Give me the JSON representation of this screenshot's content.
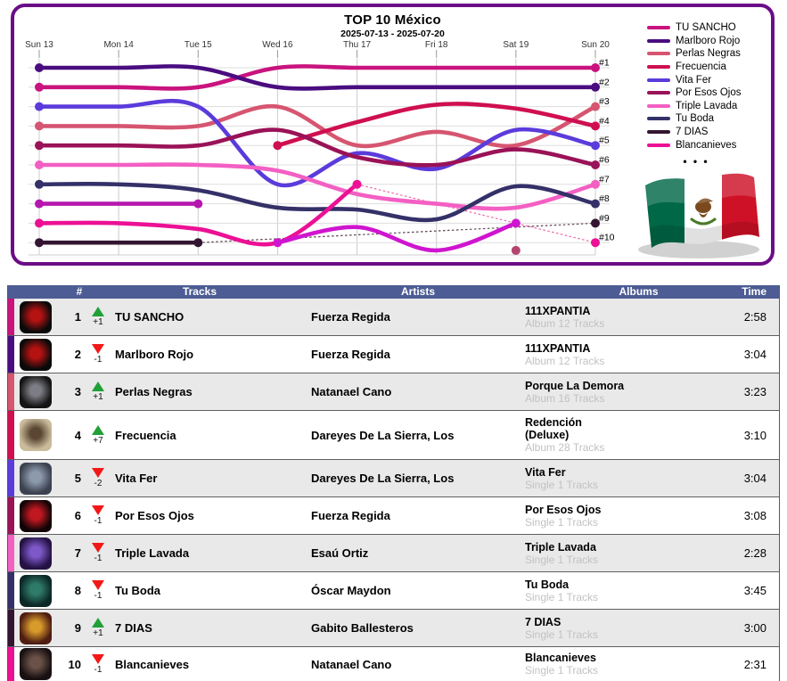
{
  "chart_data": {
    "type": "line",
    "variant": "bump-rank-chart",
    "title": "TOP 10 México",
    "subtitle": "2025-07-13 - 2025-07-20",
    "x": [
      "Sun 13",
      "Mon 14",
      "Tue 15",
      "Wed 16",
      "Thu 17",
      "Fri 18",
      "Sat 19",
      "Sun 20"
    ],
    "rank_labels": [
      "#1",
      "#2",
      "#3",
      "#4",
      "#5",
      "#6",
      "#7",
      "#8",
      "#9",
      "#10"
    ],
    "y_axis": "rank, 1 at top to 10 at bottom",
    "grid": true,
    "legend_position": "top-right",
    "legend_more_symbol": "•  •  •",
    "series": [
      {
        "name": "TU SANCHO",
        "color": "#c9137e",
        "in_legend": true,
        "ranks": [
          2,
          2,
          2,
          1,
          1,
          1,
          1,
          1
        ]
      },
      {
        "name": "Marlboro Rojo",
        "color": "#4a0d80",
        "in_legend": true,
        "ranks": [
          1,
          1,
          1,
          2,
          2,
          2,
          2,
          2
        ]
      },
      {
        "name": "Perlas Negras",
        "color": "#d65570",
        "in_legend": true,
        "ranks": [
          4,
          4,
          4,
          3,
          5,
          4.3,
          5,
          3
        ]
      },
      {
        "name": "Frecuencia",
        "color": "#cf0f50",
        "in_legend": true,
        "ranks": [
          null,
          null,
          null,
          5,
          3.8,
          2.9,
          3.1,
          4
        ]
      },
      {
        "name": "Vita Fer",
        "color": "#5b3bdb",
        "in_legend": true,
        "ranks": [
          3,
          3,
          3,
          7,
          5.4,
          6.2,
          4.2,
          5
        ]
      },
      {
        "name": "Por Esos Ojos",
        "color": "#9a1257",
        "in_legend": true,
        "ranks": [
          5,
          5,
          5,
          4.2,
          5.6,
          6,
          5.2,
          6
        ]
      },
      {
        "name": "Triple Lavada",
        "color": "#f35fc3",
        "in_legend": true,
        "ranks": [
          6,
          6,
          6,
          6.3,
          7.5,
          8,
          8.2,
          7
        ]
      },
      {
        "name": "Tu Boda",
        "color": "#343068",
        "in_legend": true,
        "ranks": [
          7,
          7,
          7.3,
          8.2,
          8.3,
          8.8,
          7.1,
          8
        ]
      },
      {
        "name": "7 DIAS",
        "color": "#331431",
        "in_legend": true,
        "ranks": [
          10,
          10,
          10,
          null,
          null,
          null,
          null,
          9
        ]
      },
      {
        "name": "Blancanieves",
        "color": "#ec1095",
        "in_legend": true,
        "ranks": [
          9,
          9,
          9.3,
          10,
          7,
          null,
          null,
          10
        ]
      },
      {
        "name": "unlabeled-exit",
        "color": "#b517ae",
        "in_legend": false,
        "ranks": [
          8,
          8,
          8,
          null,
          null,
          null,
          null,
          null
        ]
      },
      {
        "name": "unlabeled-run",
        "color": "#cf15cf",
        "in_legend": false,
        "ranks": [
          null,
          null,
          null,
          10,
          9.2,
          10.4,
          9,
          null
        ]
      },
      {
        "name": "unlabeled-dot",
        "color": "#b5446e",
        "in_legend": false,
        "ranks": [
          null,
          null,
          null,
          null,
          null,
          null,
          10.4,
          null
        ]
      }
    ],
    "dotted_links": [
      {
        "from_day": 2,
        "from_rank": 10,
        "to_day": 7,
        "to_rank": 9,
        "color": "#5a4152"
      },
      {
        "from_day": 4,
        "from_rank": 7,
        "to_day": 7,
        "to_rank": 10,
        "color": "#ef64a8"
      }
    ]
  },
  "panel": {
    "border_color": "#6b0d86"
  },
  "flag": {
    "green": "#006847",
    "white": "#ffffff",
    "red": "#ce1126",
    "eagle": "#7a4a1e",
    "laurel": "#4a7a2a",
    "shadow": "#9a9a9a"
  },
  "table": {
    "header_bg": "#4d5c94",
    "up_color": "#21a038",
    "down_color": "#f21818",
    "headers": {
      "rank": "#",
      "tracks": "Tracks",
      "artists": "Artists",
      "albums": "Albums",
      "time": "Time"
    },
    "rows": [
      {
        "rank": "1",
        "change": "+1",
        "direction": "up",
        "track": "TU SANCHO",
        "artist": "Fuerza Regida",
        "album_lines": [
          "111XPANTIA"
        ],
        "album_info": "Album 12 Tracks",
        "time": "2:58",
        "color": "#c9137e",
        "art": {
          "bg": "#0a0a0a",
          "accent": "#b51212"
        }
      },
      {
        "rank": "2",
        "change": "-1",
        "direction": "down",
        "track": "Marlboro Rojo",
        "artist": "Fuerza Regida",
        "album_lines": [
          "111XPANTIA"
        ],
        "album_info": "Album 12 Tracks",
        "time": "3:04",
        "color": "#4a0d80",
        "art": {
          "bg": "#0a0a0a",
          "accent": "#b51212"
        }
      },
      {
        "rank": "3",
        "change": "+1",
        "direction": "up",
        "track": "Perlas Negras",
        "artist": "Natanael Cano",
        "album_lines": [
          "Porque La Demora"
        ],
        "album_info": "Album 16 Tracks",
        "time": "3:23",
        "color": "#d65570",
        "art": {
          "bg": "#141414",
          "accent": "#7d7d85"
        }
      },
      {
        "rank": "4",
        "change": "+7",
        "direction": "up",
        "track": "Frecuencia",
        "artist": "Dareyes De La Sierra, Los",
        "album_lines": [
          "Redención",
          "(Deluxe)"
        ],
        "album_info": "Album 28 Tracks",
        "time": "3:10",
        "color": "#cf0f50",
        "art": {
          "bg": "#c9bb9b",
          "accent": "#5a4632"
        }
      },
      {
        "rank": "5",
        "change": "-2",
        "direction": "down",
        "track": "Vita Fer",
        "artist": "Dareyes De La Sierra, Los",
        "album_lines": [
          "Vita Fer"
        ],
        "album_info": "Single 1 Tracks",
        "time": "3:04",
        "color": "#5b3bdb",
        "art": {
          "bg": "#3c4250",
          "accent": "#8d9aac"
        }
      },
      {
        "rank": "6",
        "change": "-1",
        "direction": "down",
        "track": "Por Esos Ojos",
        "artist": "Fuerza Regida",
        "album_lines": [
          "Por Esos Ojos"
        ],
        "album_info": "Single 1 Tracks",
        "time": "3:08",
        "color": "#9a1257",
        "art": {
          "bg": "#120406",
          "accent": "#c01820"
        }
      },
      {
        "rank": "7",
        "change": "-1",
        "direction": "down",
        "track": "Triple Lavada",
        "artist": "Esaú Ortiz",
        "album_lines": [
          "Triple Lavada"
        ],
        "album_info": "Single 1 Tracks",
        "time": "2:28",
        "color": "#f35fc3",
        "art": {
          "bg": "#241244",
          "accent": "#7e57c8"
        }
      },
      {
        "rank": "8",
        "change": "-1",
        "direction": "down",
        "track": "Tu Boda",
        "artist": "Óscar Maydon",
        "album_lines": [
          "Tu Boda"
        ],
        "album_info": "Single 1 Tracks",
        "time": "3:45",
        "color": "#343068",
        "art": {
          "bg": "#0b2826",
          "accent": "#2f7a6a"
        }
      },
      {
        "rank": "9",
        "change": "+1",
        "direction": "up",
        "track": "7 DIAS",
        "artist": "Gabito Ballesteros",
        "album_lines": [
          "7 DIAS"
        ],
        "album_info": "Single 1 Tracks",
        "time": "3:00",
        "color": "#331431",
        "art": {
          "bg": "#4f1d12",
          "accent": "#d89a2b"
        }
      },
      {
        "rank": "10",
        "change": "-1",
        "direction": "down",
        "track": "Blancanieves",
        "artist": "Natanael Cano",
        "album_lines": [
          "Blancanieves"
        ],
        "album_info": "Single 1 Tracks",
        "time": "2:31",
        "color": "#ec1095",
        "art": {
          "bg": "#181012",
          "accent": "#6b5248"
        }
      }
    ]
  }
}
